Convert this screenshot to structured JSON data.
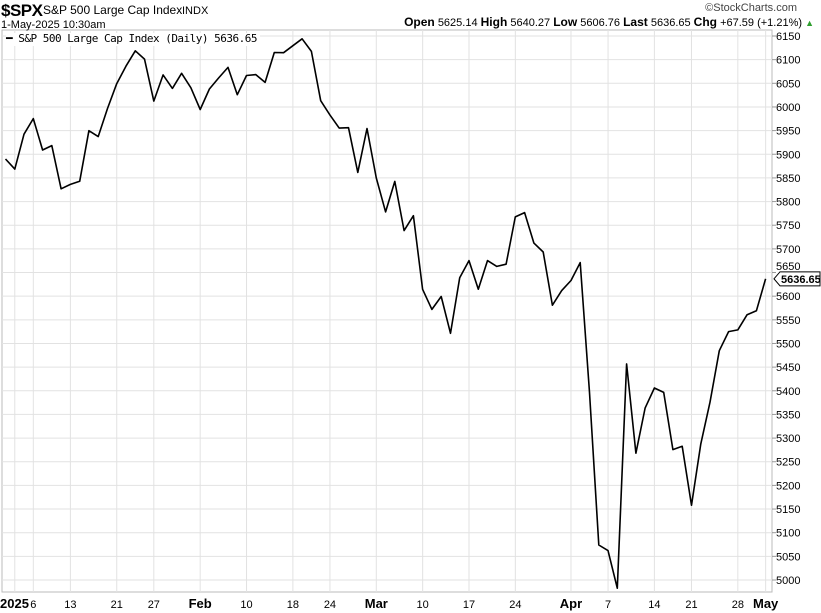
{
  "header": {
    "symbol": "$SPX",
    "name": "S&P 500 Large Cap Index",
    "exchange": "INDX",
    "brand": "©StockCharts.com",
    "datetime": "1-May-2025 10:30am",
    "open_label": "Open",
    "open": "5625.14",
    "high_label": "High",
    "high": "5640.27",
    "low_label": "Low",
    "low": "5606.76",
    "last_label": "Last",
    "last": "5636.65",
    "chg_label": "Chg",
    "chg": "+67.59 (+1.21%)",
    "chg_direction": "up",
    "up_color": "#2e9e2e"
  },
  "legend": {
    "text": "S&P 500 Large Cap Index (Daily) 5636.65"
  },
  "chart_data": {
    "type": "line",
    "title": "S&P 500 Large Cap Index (Daily) 5636.65",
    "line_color": "#000000",
    "grid": true,
    "ylim": [
      4975,
      6165
    ],
    "yticks": [
      5000,
      5050,
      5100,
      5150,
      5200,
      5250,
      5300,
      5350,
      5400,
      5450,
      5500,
      5550,
      5600,
      5650,
      5700,
      5750,
      5800,
      5850,
      5900,
      5950,
      6000,
      6050,
      6100,
      6150
    ],
    "y_axis_side": "right",
    "last_value_label": "5636.65",
    "x": [
      "2024-12-31",
      "2025-01-02",
      "2025-01-03",
      "2025-01-06",
      "2025-01-07",
      "2025-01-08",
      "2025-01-10",
      "2025-01-13",
      "2025-01-14",
      "2025-01-15",
      "2025-01-16",
      "2025-01-17",
      "2025-01-21",
      "2025-01-22",
      "2025-01-23",
      "2025-01-24",
      "2025-01-27",
      "2025-01-28",
      "2025-01-29",
      "2025-01-30",
      "2025-01-31",
      "2025-02-03",
      "2025-02-04",
      "2025-02-05",
      "2025-02-06",
      "2025-02-07",
      "2025-02-10",
      "2025-02-11",
      "2025-02-12",
      "2025-02-13",
      "2025-02-14",
      "2025-02-18",
      "2025-02-19",
      "2025-02-20",
      "2025-02-21",
      "2025-02-24",
      "2025-02-25",
      "2025-02-26",
      "2025-02-27",
      "2025-02-28",
      "2025-03-03",
      "2025-03-04",
      "2025-03-05",
      "2025-03-06",
      "2025-03-07",
      "2025-03-10",
      "2025-03-11",
      "2025-03-12",
      "2025-03-13",
      "2025-03-14",
      "2025-03-17",
      "2025-03-18",
      "2025-03-19",
      "2025-03-20",
      "2025-03-21",
      "2025-03-24",
      "2025-03-25",
      "2025-03-26",
      "2025-03-27",
      "2025-03-28",
      "2025-03-31",
      "2025-04-01",
      "2025-04-02",
      "2025-04-03",
      "2025-04-04",
      "2025-04-07",
      "2025-04-08",
      "2025-04-09",
      "2025-04-10",
      "2025-04-11",
      "2025-04-14",
      "2025-04-15",
      "2025-04-16",
      "2025-04-17",
      "2025-04-21",
      "2025-04-22",
      "2025-04-23",
      "2025-04-24",
      "2025-04-25",
      "2025-04-28",
      "2025-04-29",
      "2025-04-30",
      "2025-05-01"
    ],
    "values": [
      5890,
      5868.55,
      5942.47,
      5975.38,
      5909.03,
      5918.25,
      5827.04,
      5836.22,
      5842.91,
      5949.91,
      5937.34,
      5996.66,
      6049.24,
      6086.37,
      6118.71,
      6101.24,
      6012.28,
      6067.7,
      6039.31,
      6071.17,
      6040.53,
      5994.57,
      6037.88,
      6061.48,
      6083.57,
      6025.99,
      6066.44,
      6068.5,
      6051.97,
      6115.07,
      6114.63,
      6129.58,
      6144.15,
      6117.52,
      6013.13,
      5983.25,
      5955.25,
      5956.06,
      5861.57,
      5954.5,
      5849.72,
      5778.15,
      5842.63,
      5738.52,
      5770.2,
      5614.56,
      5572.07,
      5599.3,
      5521.52,
      5638.94,
      5675.12,
      5614.66,
      5675.29,
      5662.89,
      5667.56,
      5767.57,
      5776.65,
      5712.2,
      5693.31,
      5580.94,
      5611.85,
      5633.07,
      5670.97,
      5396.52,
      5074.08,
      5062.25,
      4982.77,
      5456.9,
      5268.05,
      5363.36,
      5405.97,
      5396.63,
      5275.7,
      5282.7,
      5158.2,
      5287.76,
      5375.86,
      5484.77,
      5525.21,
      5528.75,
      5560.83,
      5569.06,
      5636.65
    ],
    "xticks": [
      {
        "date": "2025-01-02",
        "label": "2025",
        "bold": true
      },
      {
        "date": "2025-01-06",
        "label": "6"
      },
      {
        "date": "2025-01-13",
        "label": "13"
      },
      {
        "date": "2025-01-21",
        "label": "21"
      },
      {
        "date": "2025-01-27",
        "label": "27"
      },
      {
        "date": "2025-02-03",
        "label": "Feb",
        "bold": true
      },
      {
        "date": "2025-02-10",
        "label": "10"
      },
      {
        "date": "2025-02-18",
        "label": "18"
      },
      {
        "date": "2025-02-24",
        "label": "24"
      },
      {
        "date": "2025-03-03",
        "label": "Mar",
        "bold": true
      },
      {
        "date": "2025-03-10",
        "label": "10"
      },
      {
        "date": "2025-03-17",
        "label": "17"
      },
      {
        "date": "2025-03-24",
        "label": "24"
      },
      {
        "date": "2025-04-01",
        "label": "Apr",
        "bold": true
      },
      {
        "date": "2025-04-07",
        "label": "7"
      },
      {
        "date": "2025-04-14",
        "label": "14"
      },
      {
        "date": "2025-04-21",
        "label": "21"
      },
      {
        "date": "2025-04-28",
        "label": "28"
      },
      {
        "date": "2025-05-01",
        "label": "May",
        "bold": true
      }
    ]
  }
}
